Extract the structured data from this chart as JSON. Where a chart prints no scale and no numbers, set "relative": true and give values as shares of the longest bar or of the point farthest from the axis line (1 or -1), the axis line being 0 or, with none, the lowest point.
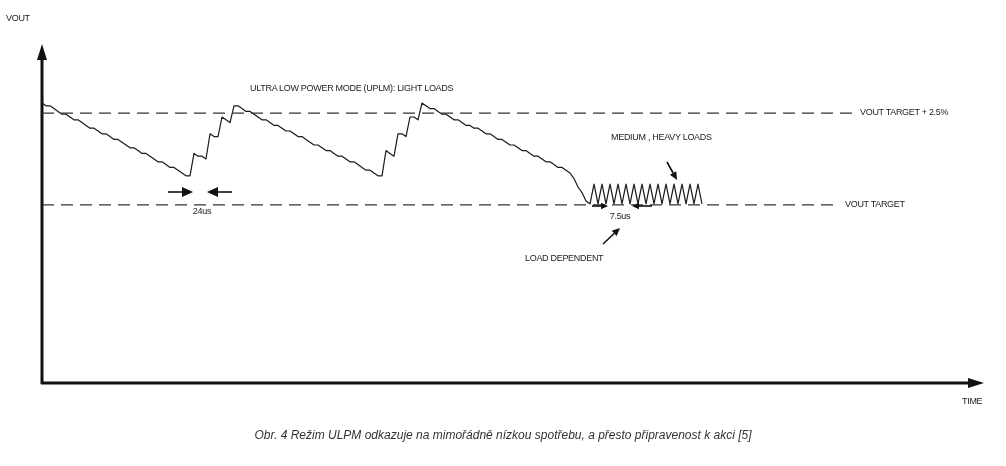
{
  "chart_data": {
    "type": "line",
    "relative": true,
    "xlabel": "TIME",
    "marker": "none",
    "line_style": "solid",
    "categories": [
      null,
      null,
      null,
      null,
      null,
      null,
      null,
      null,
      null,
      null,
      null,
      null,
      null,
      null,
      null,
      null,
      null,
      null,
      null,
      null,
      null,
      null,
      null,
      null,
      null,
      null,
      null,
      null,
      null,
      null,
      null,
      null,
      null,
      null,
      null,
      null,
      null,
      null,
      null,
      null,
      null,
      null,
      null,
      null,
      null,
      null,
      null,
      null,
      null,
      null,
      null,
      null,
      null,
      null,
      null,
      null,
      null,
      null,
      null,
      null,
      null,
      null,
      null,
      null,
      null,
      null,
      null,
      null,
      null,
      null,
      null,
      null,
      null,
      null,
      null,
      null,
      null,
      null,
      null,
      null,
      null,
      null,
      null,
      null,
      null,
      null,
      null,
      null,
      null,
      null,
      null,
      null,
      null,
      null,
      null,
      null,
      null,
      null,
      null,
      null,
      null,
      null,
      null,
      null,
      null,
      null,
      null,
      null,
      null,
      null,
      null,
      null,
      null,
      null,
      null,
      null,
      null,
      null,
      null,
      null,
      null,
      null,
      null,
      null,
      null,
      null,
      null,
      null,
      null,
      null,
      null,
      null,
      null,
      null,
      null,
      null,
      null,
      null,
      null,
      null,
      null,
      null,
      null,
      null,
      null,
      null,
      null,
      null,
      null,
      null,
      null,
      null,
      null,
      null,
      null,
      null,
      null,
      null,
      null,
      null,
      null,
      null,
      null,
      null,
      null,
      null,
      null,
      null,
      null,
      null,
      null,
      null,
      null,
      null,
      null,
      null,
      null,
      null,
      null,
      null,
      null,
      null,
      null,
      null,
      null,
      null,
      null,
      null,
      null,
      null,
      null,
      null,
      null,
      null,
      null,
      null,
      null,
      null,
      null,
      null,
      null,
      null,
      null,
      null,
      null,
      null,
      null,
      null,
      null,
      null,
      null,
      null,
      null,
      null,
      null,
      null,
      null,
      null,
      null,
      null,
      null,
      null,
      null,
      null,
      null,
      null,
      null,
      null,
      null,
      null,
      null,
      null
    ],
    "series": [
      {
        "color": "#1a1a1a",
        "values": [
          1.0,
          0.99,
          0.99,
          0.98,
          0.97,
          0.96,
          0.96,
          0.95,
          0.94,
          0.94,
          0.93,
          0.92,
          0.91,
          0.91,
          0.9,
          0.89,
          0.89,
          0.88,
          0.87,
          0.87,
          0.86,
          0.85,
          0.84,
          0.84,
          0.83,
          0.82,
          0.82,
          0.81,
          0.8,
          0.79,
          0.79,
          0.78,
          0.77,
          0.77,
          0.76,
          0.75,
          0.74,
          0.74,
          0.82,
          0.81,
          0.81,
          0.8,
          0.89,
          0.88,
          0.88,
          0.95,
          0.94,
          0.93,
          0.99,
          0.99,
          0.98,
          0.97,
          0.97,
          0.96,
          0.95,
          0.94,
          0.94,
          0.93,
          0.92,
          0.92,
          0.91,
          0.9,
          0.9,
          0.89,
          0.88,
          0.88,
          0.87,
          0.86,
          0.85,
          0.85,
          0.84,
          0.83,
          0.83,
          0.82,
          0.81,
          0.81,
          0.8,
          0.79,
          0.79,
          0.78,
          0.77,
          0.76,
          0.76,
          0.75,
          0.74,
          0.74,
          0.83,
          0.82,
          0.81,
          0.89,
          0.89,
          0.88,
          0.95,
          0.95,
          0.94,
          1.0,
          0.99,
          0.98,
          0.98,
          0.97,
          0.96,
          0.96,
          0.95,
          0.94,
          0.94,
          0.93,
          0.92,
          0.92,
          0.91,
          0.91,
          0.9,
          0.89,
          0.89,
          0.88,
          0.87,
          0.87,
          0.86,
          0.85,
          0.85,
          0.84,
          0.83,
          0.83,
          0.82,
          0.81,
          0.81,
          0.8,
          0.79,
          0.79,
          0.78,
          0.77,
          0.77,
          0.76,
          0.75,
          0.73,
          0.7,
          0.68,
          0.65,
          0.64,
          0.71,
          0.64,
          0.71,
          0.64,
          0.71,
          0.64,
          0.71,
          0.64,
          0.71,
          0.64,
          0.71,
          0.64,
          0.71,
          0.64,
          0.71,
          0.64,
          0.71,
          0.64,
          0.71,
          0.64,
          0.71,
          0.64,
          0.71,
          0.64,
          0.71,
          0.64,
          0.71,
          0.64,
          null,
          null,
          null,
          null,
          null,
          null,
          null,
          null,
          null,
          null,
          null,
          null,
          null,
          null,
          null,
          null,
          null,
          null,
          null,
          null,
          null,
          null,
          null,
          null,
          null,
          null,
          null,
          null,
          null,
          null,
          null,
          null,
          null,
          null,
          null,
          null,
          null,
          null,
          null,
          null,
          null,
          null,
          null,
          null,
          null,
          null,
          null,
          null,
          null,
          null,
          null,
          null,
          null,
          null,
          null,
          null,
          null,
          null,
          null,
          null,
          null,
          null,
          null,
          null,
          null,
          null
        ]
      }
    ],
    "ref_lines": [
      {
        "axis": "y",
        "value": 0.964,
        "label": "VOUT TARGET + 2.5%",
        "color": "#333333",
        "line_style": "dashed"
      },
      {
        "axis": "y",
        "value": 0.636,
        "label": "VOUT TARGET",
        "color": "#333333",
        "line_style": "dashed"
      }
    ],
    "annotations": [
      "ULTRA LOW POWER MODE (UPLM): LIGHT LOADS",
      "24us",
      "MEDIUM , HEAVY LOADS",
      "7.5us",
      "LOAD DEPENDENT",
      "Obr. 4  Režim ULPM odkazuje na mimořádně nízkou spotřebu, a přesto připravenost k akci [5]",
      "VOUT"
    ]
  }
}
